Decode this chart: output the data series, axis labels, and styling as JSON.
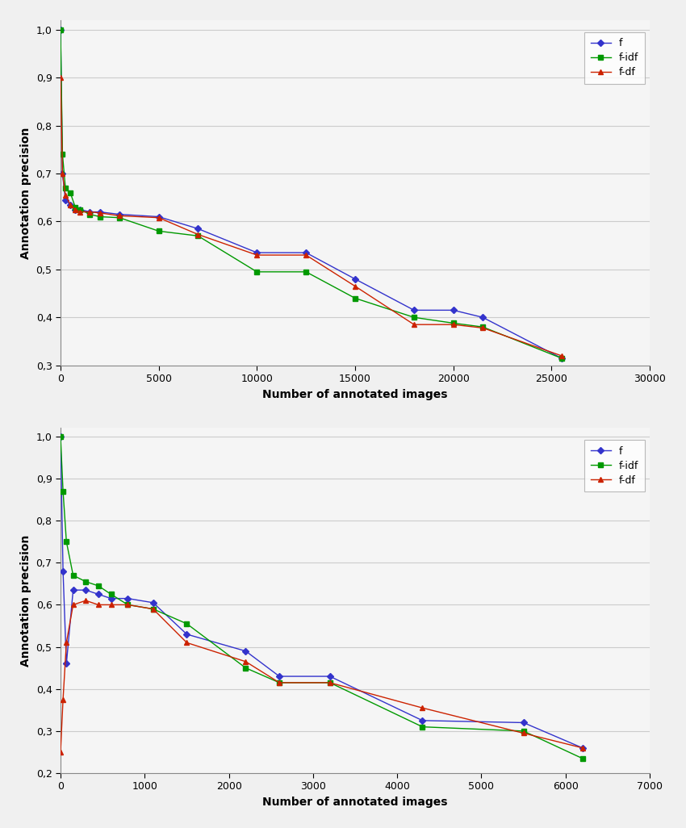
{
  "top": {
    "xlabel": "Number of annotated images",
    "ylabel": "Annotation precision",
    "xlim": [
      0,
      30000
    ],
    "ylim": [
      0.3,
      1.02
    ],
    "xticks": [
      0,
      5000,
      10000,
      15000,
      20000,
      25000,
      30000
    ],
    "yticks": [
      0.3,
      0.4,
      0.5,
      0.6,
      0.7,
      0.8,
      0.9,
      1.0
    ],
    "f_x": [
      0,
      100,
      250,
      500,
      750,
      1000,
      1500,
      2000,
      3000,
      5000,
      7000,
      10000,
      12500,
      15000,
      18000,
      20000,
      21500,
      25500
    ],
    "f_y": [
      1.0,
      0.7,
      0.645,
      0.635,
      0.625,
      0.625,
      0.62,
      0.62,
      0.615,
      0.61,
      0.585,
      0.535,
      0.535,
      0.48,
      0.415,
      0.415,
      0.4,
      0.315
    ],
    "fidf_x": [
      0,
      100,
      250,
      500,
      750,
      1000,
      1500,
      2000,
      3000,
      5000,
      7000,
      10000,
      12500,
      15000,
      18000,
      20000,
      21500,
      25500
    ],
    "fidf_y": [
      1.0,
      0.74,
      0.67,
      0.66,
      0.63,
      0.625,
      0.615,
      0.61,
      0.608,
      0.58,
      0.57,
      0.495,
      0.495,
      0.44,
      0.4,
      0.388,
      0.38,
      0.315
    ],
    "fdf_x": [
      0,
      100,
      250,
      500,
      750,
      1000,
      1500,
      2000,
      3000,
      5000,
      7000,
      10000,
      12500,
      15000,
      18000,
      20000,
      21500,
      25500
    ],
    "fdf_y": [
      0.9,
      0.7,
      0.655,
      0.635,
      0.625,
      0.62,
      0.62,
      0.618,
      0.612,
      0.608,
      0.573,
      0.53,
      0.53,
      0.465,
      0.385,
      0.385,
      0.378,
      0.32
    ]
  },
  "bottom": {
    "xlabel": "Number of annotated images",
    "ylabel": "Annotation precision",
    "xlim": [
      0,
      7000
    ],
    "ylim": [
      0.2,
      1.02
    ],
    "xticks": [
      0,
      1000,
      2000,
      3000,
      4000,
      5000,
      6000,
      7000
    ],
    "yticks": [
      0.2,
      0.3,
      0.4,
      0.5,
      0.6,
      0.7,
      0.8,
      0.9,
      1.0
    ],
    "f_x": [
      0,
      30,
      70,
      150,
      300,
      450,
      600,
      800,
      1100,
      1500,
      2200,
      2600,
      3200,
      4300,
      5500,
      6200
    ],
    "f_y": [
      1.0,
      0.68,
      0.46,
      0.635,
      0.635,
      0.625,
      0.615,
      0.615,
      0.605,
      0.53,
      0.49,
      0.43,
      0.43,
      0.325,
      0.32,
      0.26
    ],
    "fidf_x": [
      0,
      30,
      70,
      150,
      300,
      450,
      600,
      800,
      1100,
      1500,
      2200,
      2600,
      3200,
      4300,
      5500,
      6200
    ],
    "fidf_y": [
      1.0,
      0.87,
      0.75,
      0.67,
      0.655,
      0.645,
      0.625,
      0.6,
      0.59,
      0.555,
      0.45,
      0.415,
      0.415,
      0.31,
      0.3,
      0.235
    ],
    "fdf_x": [
      0,
      30,
      70,
      150,
      300,
      450,
      600,
      800,
      1100,
      1500,
      2200,
      2600,
      3200,
      4300,
      5500,
      6200
    ],
    "fdf_y": [
      0.25,
      0.375,
      0.51,
      0.6,
      0.61,
      0.6,
      0.6,
      0.6,
      0.59,
      0.51,
      0.465,
      0.415,
      0.415,
      0.355,
      0.295,
      0.26
    ]
  },
  "colors": {
    "f": "#3333CC",
    "fidf": "#009900",
    "fdf": "#CC2200"
  },
  "legend_labels": [
    "f",
    "f-idf",
    "f-df"
  ],
  "marker_f": "D",
  "marker_fidf": "s",
  "marker_fdf": "^",
  "markersize": 4,
  "linewidth": 1.0,
  "label_fontsize": 10,
  "tick_fontsize": 9,
  "legend_fontsize": 9,
  "bg_color": "#f0f0f0",
  "plot_bg": "#f5f5f5"
}
